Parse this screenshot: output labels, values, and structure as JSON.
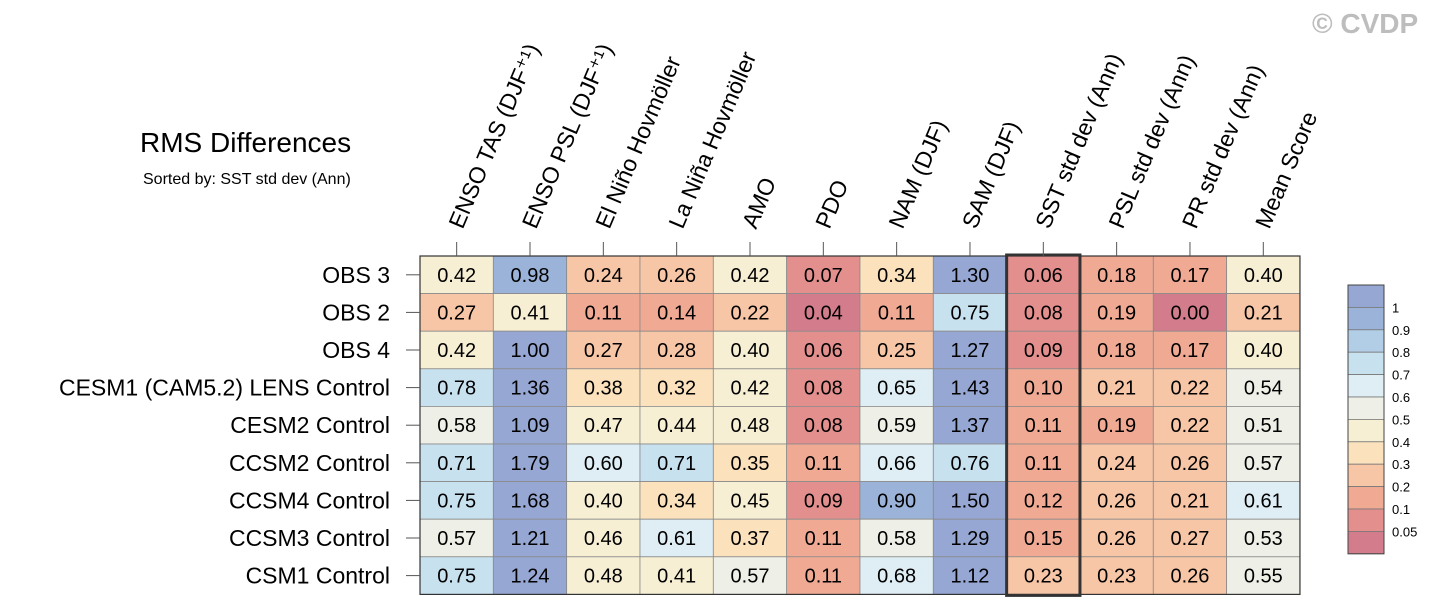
{
  "copyright": "© CVDP",
  "chart_data": {
    "type": "heatmap",
    "title": "RMS Differences",
    "subtitle": "Sorted by: SST std dev (Ann)",
    "columns": [
      "ENSO TAS (DJF⁺¹)",
      "ENSO PSL (DJF⁺¹)",
      "El Niño Hovmöller",
      "La Niña Hovmöller",
      "AMO",
      "PDO",
      "NAM (DJF)",
      "SAM (DJF)",
      "SST std dev (Ann)",
      "PSL std dev (Ann)",
      "PR std dev (Ann)",
      "Mean Score"
    ],
    "rows": [
      "OBS 3",
      "OBS 2",
      "OBS 4",
      "CESM1 (CAM5.2) LENS Control",
      "CESM2 Control",
      "CCSM2 Control",
      "CCSM4 Control",
      "CCSM3 Control",
      "CSM1 Control"
    ],
    "values": [
      [
        0.42,
        0.98,
        0.24,
        0.26,
        0.42,
        0.07,
        0.34,
        1.3,
        0.06,
        0.18,
        0.17,
        0.4
      ],
      [
        0.27,
        0.41,
        0.11,
        0.14,
        0.22,
        0.04,
        0.11,
        0.75,
        0.08,
        0.19,
        0.0,
        0.21
      ],
      [
        0.42,
        1.0,
        0.27,
        0.28,
        0.4,
        0.06,
        0.25,
        1.27,
        0.09,
        0.18,
        0.17,
        0.4
      ],
      [
        0.78,
        1.36,
        0.38,
        0.32,
        0.42,
        0.08,
        0.65,
        1.43,
        0.1,
        0.21,
        0.22,
        0.54
      ],
      [
        0.58,
        1.09,
        0.47,
        0.44,
        0.48,
        0.08,
        0.59,
        1.37,
        0.11,
        0.19,
        0.22,
        0.51
      ],
      [
        0.71,
        1.79,
        0.6,
        0.71,
        0.35,
        0.11,
        0.66,
        0.76,
        0.11,
        0.24,
        0.26,
        0.57
      ],
      [
        0.75,
        1.68,
        0.4,
        0.34,
        0.45,
        0.09,
        0.9,
        1.5,
        0.12,
        0.26,
        0.21,
        0.61
      ],
      [
        0.57,
        1.21,
        0.46,
        0.61,
        0.37,
        0.11,
        0.58,
        1.29,
        0.15,
        0.26,
        0.27,
        0.53
      ],
      [
        0.75,
        1.24,
        0.48,
        0.41,
        0.57,
        0.11,
        0.68,
        1.12,
        0.23,
        0.23,
        0.26,
        0.55
      ]
    ],
    "highlighted_column": "SST std dev (Ann)",
    "colorbar": {
      "levels": [
        0.05,
        0.1,
        0.2,
        0.3,
        0.4,
        0.5,
        0.6,
        0.7,
        0.8,
        0.9,
        1
      ],
      "labels": [
        "0.05",
        "0.1",
        "0.2",
        "0.3",
        "0.4",
        "0.5",
        "0.6",
        "0.7",
        "0.8",
        "0.9",
        "1"
      ],
      "colors": [
        "#d37d8c",
        "#e28f8d",
        "#f0aa94",
        "#f7c6a6",
        "#fbe2bd",
        "#f6efd4",
        "#eef0e7",
        "#deeef4",
        "#c8e1ef",
        "#b2cde6",
        "#9bb3d8",
        "#95a7d2"
      ],
      "legend_placement": "right"
    }
  }
}
